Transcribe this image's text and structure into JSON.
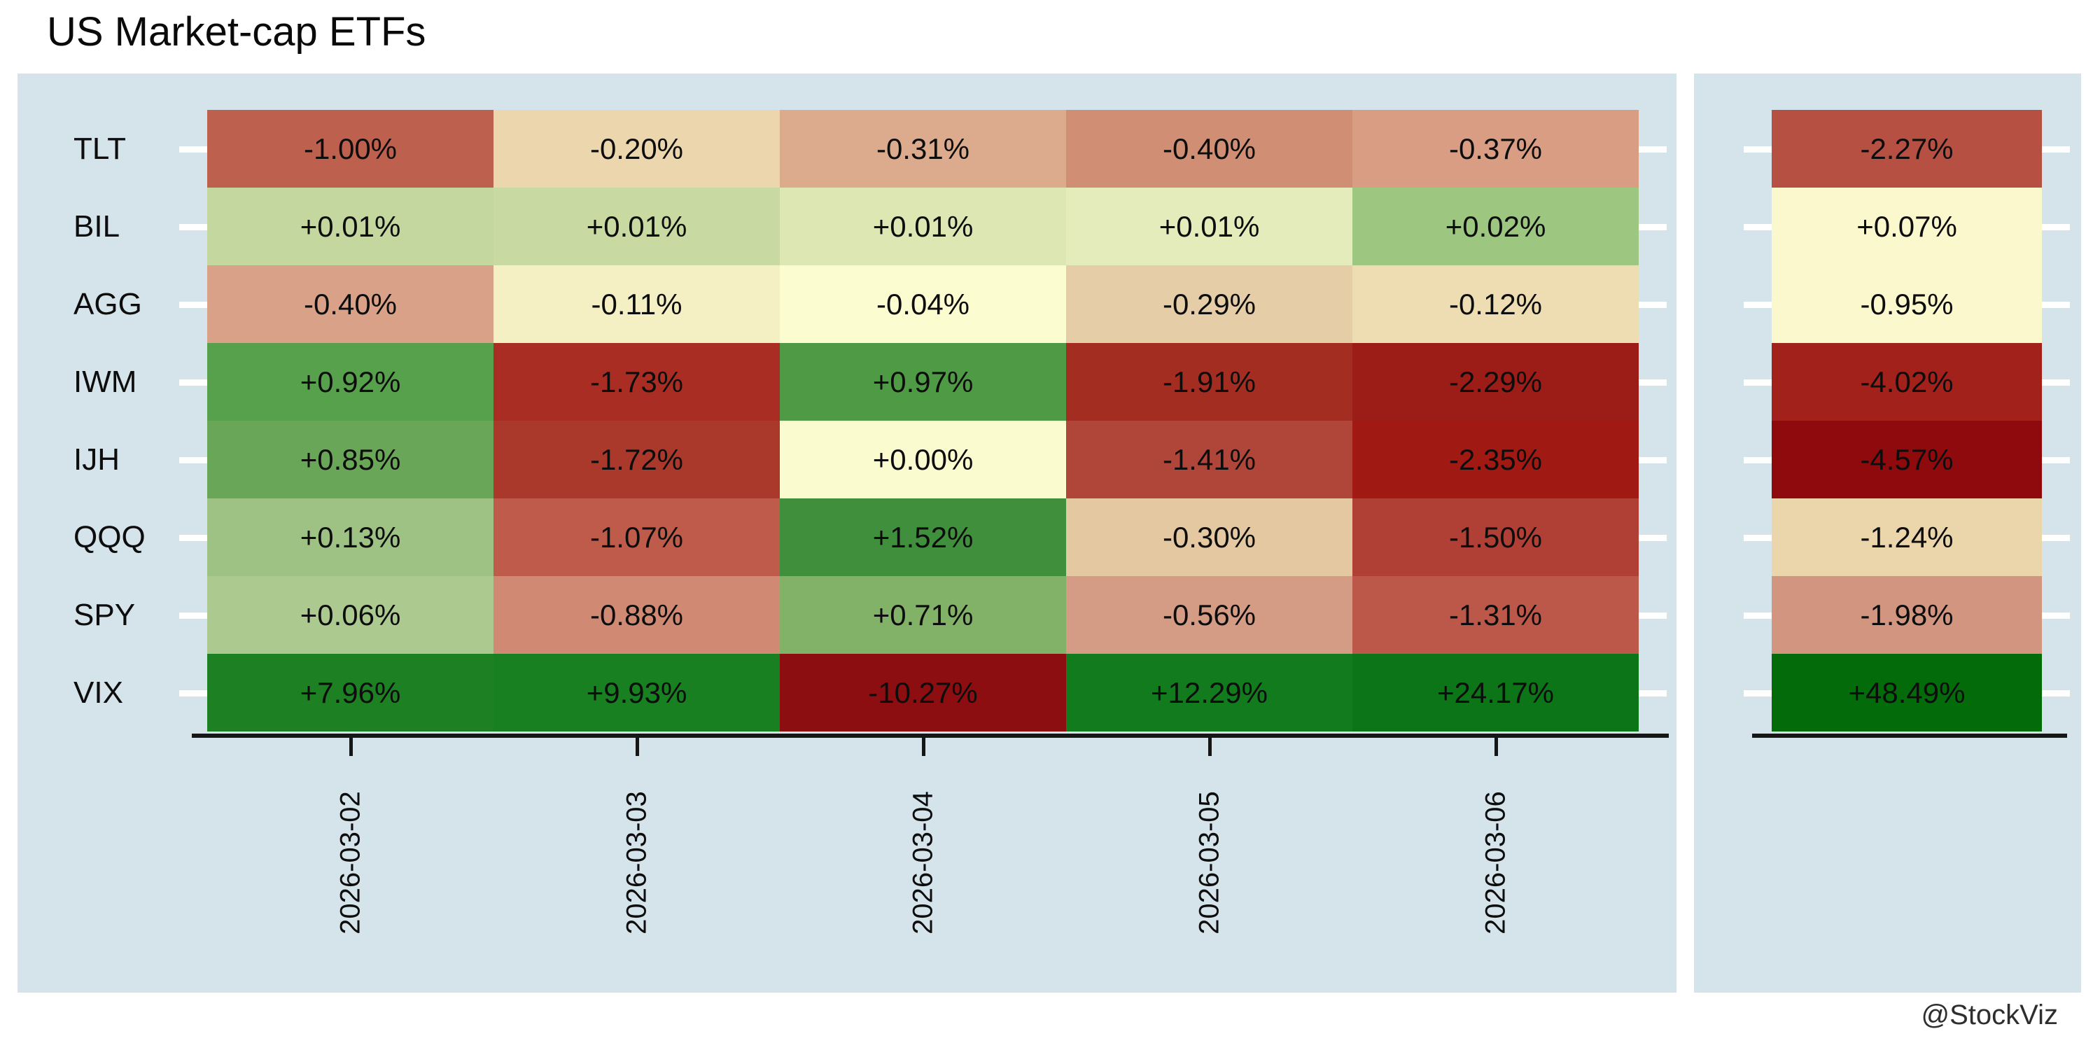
{
  "title": "US Market-cap ETFs",
  "credit": "@StockViz",
  "colors": {
    "panel_bg": "#d5e3ea",
    "axis": "#161616",
    "tick_dash": "#ffffff",
    "text": "#0d0d0d"
  },
  "chart_data": {
    "type": "heatmap",
    "title": "US Market-cap ETFs",
    "legend_position": "none",
    "grid": false,
    "colorscale": "red-yellow-green, column-normalized",
    "rows": [
      "TLT",
      "BIL",
      "AGG",
      "IWM",
      "IJH",
      "QQQ",
      "SPY",
      "VIX"
    ],
    "columns": [
      "2026-03-02",
      "2026-03-03",
      "2026-03-04",
      "2026-03-05",
      "2026-03-06"
    ],
    "values": [
      [
        -1.0,
        -0.2,
        -0.31,
        -0.4,
        -0.37
      ],
      [
        0.01,
        0.01,
        0.01,
        0.01,
        0.02
      ],
      [
        -0.4,
        -0.11,
        -0.04,
        -0.29,
        -0.12
      ],
      [
        0.92,
        -1.73,
        0.97,
        -1.91,
        -2.29
      ],
      [
        0.85,
        -1.72,
        0.0,
        -1.41,
        -2.35
      ],
      [
        0.13,
        -1.07,
        1.52,
        -0.3,
        -1.5
      ],
      [
        0.06,
        -0.88,
        0.71,
        -0.56,
        -1.31
      ],
      [
        7.96,
        9.93,
        -10.27,
        12.29,
        24.17
      ]
    ],
    "display": [
      [
        "-1.00%",
        "-0.20%",
        "-0.31%",
        "-0.40%",
        "-0.37%"
      ],
      [
        "+0.01%",
        "+0.01%",
        "+0.01%",
        "+0.01%",
        "+0.02%"
      ],
      [
        "-0.40%",
        "-0.11%",
        "-0.04%",
        "-0.29%",
        "-0.12%"
      ],
      [
        "+0.92%",
        "-1.73%",
        "+0.97%",
        "-1.91%",
        "-2.29%"
      ],
      [
        "+0.85%",
        "-1.72%",
        "+0.00%",
        "-1.41%",
        "-2.35%"
      ],
      [
        "+0.13%",
        "-1.07%",
        "+1.52%",
        "-0.30%",
        "-1.50%"
      ],
      [
        "+0.06%",
        "-0.88%",
        "+0.71%",
        "-0.56%",
        "-1.31%"
      ],
      [
        "+7.96%",
        "+9.93%",
        "-10.27%",
        "+12.29%",
        "+24.17%"
      ]
    ],
    "cell_colors": [
      [
        "#bd604e",
        "#ebd6ad",
        "#dcaa8c",
        "#d08f74",
        "#d89d82"
      ],
      [
        "#c3d79e",
        "#c8daa2",
        "#dde7b3",
        "#e3ecba",
        "#9dc681"
      ],
      [
        "#d9a288",
        "#f4f0c3",
        "#fbfcd0",
        "#e5cda7",
        "#eeddb3"
      ],
      [
        "#58a14c",
        "#aa2d23",
        "#4f9a45",
        "#a42d22",
        "#9c1d17"
      ],
      [
        "#69a657",
        "#aa392c",
        "#fbfbd0",
        "#b0463a",
        "#a01913"
      ],
      [
        "#9dc284",
        "#bf5b4a",
        "#3f8f3c",
        "#e3c8a2",
        "#b04035"
      ],
      [
        "#acca8f",
        "#d08a73",
        "#82b268",
        "#d59c85",
        "#bc584a"
      ],
      [
        "#1d8023",
        "#188020",
        "#8c0e10",
        "#127b1d",
        "#0c7517"
      ]
    ],
    "totals": [
      -2.27,
      0.07,
      -0.95,
      -4.02,
      -4.57,
      -1.24,
      -1.98,
      48.49
    ],
    "totals_display": [
      "-2.27%",
      "+0.07%",
      "-0.95%",
      "-4.02%",
      "-4.57%",
      "-1.24%",
      "-1.98%",
      "+48.49%"
    ],
    "total_colors": [
      "#b65043",
      "#fcf8cd",
      "#fcf8cd",
      "#a2211a",
      "#8e0a0d",
      "#ebd5ab",
      "#d29680",
      "#046b0b"
    ]
  }
}
